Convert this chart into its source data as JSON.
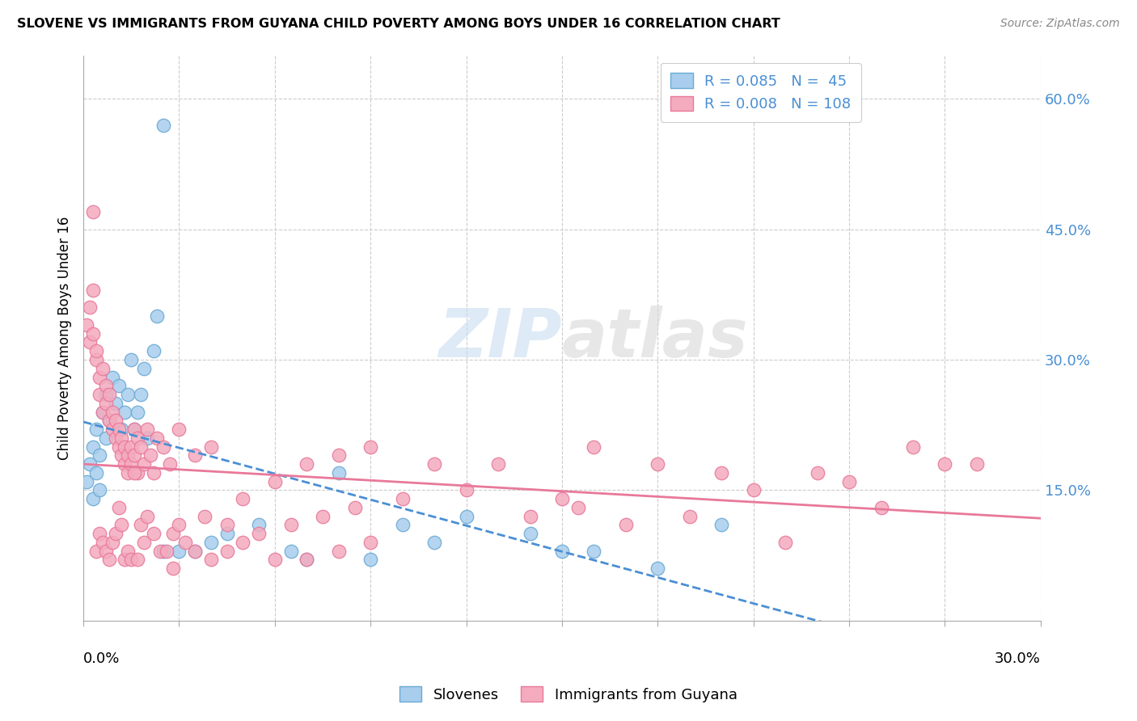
{
  "title": "SLOVENE VS IMMIGRANTS FROM GUYANA CHILD POVERTY AMONG BOYS UNDER 16 CORRELATION CHART",
  "source": "Source: ZipAtlas.com",
  "ylabel": "Child Poverty Among Boys Under 16",
  "ytick_values": [
    0.15,
    0.3,
    0.45,
    0.6
  ],
  "xlim": [
    0.0,
    0.3
  ],
  "ylim": [
    0.0,
    0.65
  ],
  "blue_color": "#A8CDED",
  "pink_color": "#F4ABBE",
  "blue_edge_color": "#6AAAD4",
  "pink_edge_color": "#E8799A",
  "blue_line_color": "#4A8FD4",
  "pink_line_color": "#E8799A",
  "legend_text_color": "#4A8FD4",
  "ytick_color": "#4A8FD4",
  "R_blue": 0.085,
  "N_blue": 45,
  "R_pink": 0.008,
  "N_pink": 108,
  "watermark": "ZIPatlas",
  "legend_labels": [
    "Slovenes",
    "Immigrants from Guyana"
  ],
  "blue_scatter_x": [
    0.001,
    0.002,
    0.003,
    0.003,
    0.004,
    0.004,
    0.005,
    0.005,
    0.006,
    0.007,
    0.007,
    0.008,
    0.009,
    0.01,
    0.011,
    0.012,
    0.013,
    0.014,
    0.015,
    0.016,
    0.017,
    0.018,
    0.019,
    0.02,
    0.022,
    0.023,
    0.025,
    0.03,
    0.035,
    0.04,
    0.045,
    0.055,
    0.065,
    0.07,
    0.08,
    0.09,
    0.1,
    0.11,
    0.12,
    0.14,
    0.15,
    0.16,
    0.18,
    0.2,
    0.025
  ],
  "blue_scatter_y": [
    0.16,
    0.18,
    0.2,
    0.14,
    0.22,
    0.17,
    0.19,
    0.15,
    0.24,
    0.21,
    0.26,
    0.23,
    0.28,
    0.25,
    0.27,
    0.22,
    0.24,
    0.26,
    0.3,
    0.22,
    0.24,
    0.26,
    0.29,
    0.21,
    0.31,
    0.35,
    0.08,
    0.08,
    0.08,
    0.09,
    0.1,
    0.11,
    0.08,
    0.07,
    0.17,
    0.07,
    0.11,
    0.09,
    0.12,
    0.1,
    0.08,
    0.08,
    0.06,
    0.11,
    0.57
  ],
  "pink_scatter_x": [
    0.001,
    0.002,
    0.002,
    0.003,
    0.003,
    0.004,
    0.004,
    0.005,
    0.005,
    0.006,
    0.006,
    0.007,
    0.007,
    0.008,
    0.008,
    0.009,
    0.009,
    0.01,
    0.01,
    0.011,
    0.011,
    0.012,
    0.012,
    0.013,
    0.013,
    0.014,
    0.014,
    0.015,
    0.015,
    0.016,
    0.016,
    0.017,
    0.017,
    0.018,
    0.019,
    0.02,
    0.021,
    0.022,
    0.023,
    0.025,
    0.027,
    0.028,
    0.03,
    0.032,
    0.035,
    0.038,
    0.04,
    0.045,
    0.05,
    0.055,
    0.06,
    0.065,
    0.07,
    0.075,
    0.08,
    0.085,
    0.09,
    0.1,
    0.11,
    0.12,
    0.13,
    0.14,
    0.15,
    0.155,
    0.16,
    0.17,
    0.18,
    0.19,
    0.2,
    0.21,
    0.22,
    0.23,
    0.24,
    0.25,
    0.26,
    0.27,
    0.28,
    0.003,
    0.004,
    0.005,
    0.006,
    0.007,
    0.008,
    0.009,
    0.01,
    0.011,
    0.012,
    0.013,
    0.014,
    0.015,
    0.016,
    0.017,
    0.018,
    0.019,
    0.02,
    0.022,
    0.024,
    0.026,
    0.028,
    0.03,
    0.035,
    0.04,
    0.045,
    0.05,
    0.06,
    0.07,
    0.08,
    0.09
  ],
  "pink_scatter_y": [
    0.34,
    0.36,
    0.32,
    0.38,
    0.33,
    0.3,
    0.31,
    0.28,
    0.26,
    0.24,
    0.29,
    0.27,
    0.25,
    0.23,
    0.26,
    0.22,
    0.24,
    0.21,
    0.23,
    0.2,
    0.22,
    0.19,
    0.21,
    0.2,
    0.18,
    0.17,
    0.19,
    0.2,
    0.18,
    0.22,
    0.19,
    0.17,
    0.21,
    0.2,
    0.18,
    0.22,
    0.19,
    0.17,
    0.21,
    0.2,
    0.18,
    0.1,
    0.22,
    0.09,
    0.19,
    0.12,
    0.2,
    0.11,
    0.14,
    0.1,
    0.16,
    0.11,
    0.18,
    0.12,
    0.19,
    0.13,
    0.2,
    0.14,
    0.18,
    0.15,
    0.18,
    0.12,
    0.14,
    0.13,
    0.2,
    0.11,
    0.18,
    0.12,
    0.17,
    0.15,
    0.09,
    0.17,
    0.16,
    0.13,
    0.2,
    0.18,
    0.18,
    0.47,
    0.08,
    0.1,
    0.09,
    0.08,
    0.07,
    0.09,
    0.1,
    0.13,
    0.11,
    0.07,
    0.08,
    0.07,
    0.17,
    0.07,
    0.11,
    0.09,
    0.12,
    0.1,
    0.08,
    0.08,
    0.06,
    0.11,
    0.08,
    0.07,
    0.08,
    0.09,
    0.07,
    0.07,
    0.08,
    0.09
  ]
}
